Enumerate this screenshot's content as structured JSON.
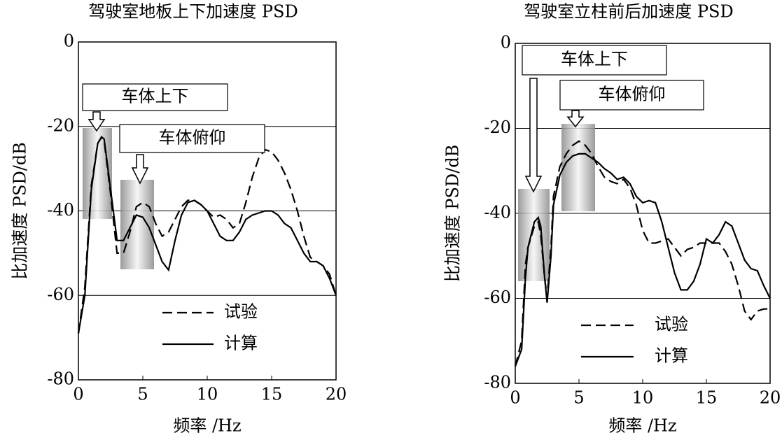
{
  "chart_data": [
    {
      "type": "line",
      "title": "驾驶室地板上下加速度 PSD",
      "xlabel": "频率 /Hz",
      "ylabel": "比加速度  PSD/dB",
      "x": [
        0,
        0.5,
        1,
        1.5,
        1.8,
        2,
        2.5,
        3,
        3.5,
        4,
        4.5,
        5,
        5.5,
        6,
        6.5,
        7,
        7.5,
        8,
        8.5,
        9,
        9.5,
        10,
        10.5,
        11,
        11.5,
        12,
        12.5,
        13,
        13.5,
        14,
        14.5,
        15,
        15.5,
        16,
        16.5,
        17,
        17.5,
        18,
        18.5,
        19,
        19.5,
        20
      ],
      "series": [
        {
          "name": "试验",
          "color": "#000000",
          "linestyle": "dashed",
          "values": [
            -69,
            -58,
            -34,
            -24,
            -22.5,
            -23.5,
            -36,
            -50,
            -50,
            -45,
            -39,
            -38,
            -39,
            -43,
            -46,
            -45,
            -42,
            -39,
            -37.5,
            -37.5,
            -38.5,
            -40,
            -41.5,
            -41,
            -42,
            -44,
            -43,
            -38,
            -32,
            -27.5,
            -25.5,
            -26,
            -28,
            -31,
            -35,
            -40,
            -46,
            -51,
            -52,
            -53,
            -55,
            -60
          ]
        },
        {
          "name": "计算",
          "color": "#000000",
          "linestyle": "solid",
          "values": [
            -69,
            -60,
            -35,
            -24,
            -22.5,
            -23,
            -35,
            -47,
            -47,
            -44,
            -41,
            -41.5,
            -44,
            -48,
            -52,
            -54,
            -47,
            -41,
            -38,
            -37.5,
            -38.5,
            -40,
            -43,
            -46,
            -47,
            -47,
            -45,
            -42,
            -41,
            -40.5,
            -40,
            -40,
            -41,
            -43,
            -44,
            -47,
            -50,
            -52,
            -52,
            -53,
            -56,
            -60
          ]
        }
      ],
      "xlim": [
        0,
        20
      ],
      "ylim": [
        -80,
        0
      ],
      "xticks": [
        0,
        5,
        10,
        15,
        20
      ],
      "yticks": [
        0,
        -20,
        -40,
        -60,
        -80
      ],
      "grid": true,
      "legend": "lower center",
      "annotations": [
        "车体上下",
        "车体俯仰"
      ]
    },
    {
      "type": "line",
      "title": "驾驶室立柱前后加速度 PSD",
      "xlabel": "频率 /Hz",
      "ylabel": "比加速度  PSD/dB",
      "x": [
        0,
        0.5,
        0.8,
        1,
        1.5,
        1.8,
        2,
        2.3,
        2.5,
        2.8,
        3,
        3.5,
        4,
        4.5,
        5,
        5.5,
        6,
        6.5,
        7,
        7.5,
        8,
        8.5,
        9,
        9.5,
        10,
        10.5,
        11,
        11.5,
        12,
        12.5,
        13,
        13.5,
        14,
        14.5,
        15,
        15.5,
        16,
        16.5,
        17,
        17.5,
        18,
        18.5,
        19,
        19.5,
        20
      ],
      "series": [
        {
          "name": "试验",
          "color": "#000000",
          "linestyle": "dashed",
          "values": [
            -76,
            -70,
            -52,
            -48,
            -43,
            -42,
            -45,
            -55,
            -60,
            -48,
            -36,
            -29,
            -26,
            -24,
            -23,
            -24,
            -26,
            -29,
            -31.5,
            -32.5,
            -33,
            -32,
            -34,
            -38,
            -44,
            -47,
            -47,
            -46.5,
            -46,
            -48,
            -50,
            -48.5,
            -48,
            -47,
            -47,
            -47,
            -47,
            -49,
            -52,
            -57,
            -63,
            -65,
            -63,
            -62.5,
            -62.5
          ]
        },
        {
          "name": "计算",
          "color": "#000000",
          "linestyle": "solid",
          "values": [
            -76,
            -72,
            -55,
            -48,
            -42,
            -41,
            -43,
            -55,
            -61,
            -50,
            -38,
            -31,
            -28,
            -26.5,
            -26,
            -26,
            -27,
            -28,
            -29.5,
            -30.5,
            -32,
            -31.5,
            -33,
            -36,
            -37.5,
            -37,
            -37.5,
            -42,
            -48,
            -54,
            -58,
            -58,
            -56,
            -52,
            -46,
            -47,
            -45,
            -42,
            -43,
            -47,
            -51,
            -53,
            -53.5,
            -57,
            -60
          ]
        }
      ],
      "xlim": [
        0,
        20
      ],
      "ylim": [
        -80,
        0
      ],
      "xticks": [
        0,
        5,
        10,
        15,
        20
      ],
      "yticks": [
        0,
        -20,
        -40,
        -60,
        -80
      ],
      "grid": true,
      "legend": "lower center",
      "annotations": [
        "车体上下",
        "车体俯仰"
      ]
    }
  ]
}
